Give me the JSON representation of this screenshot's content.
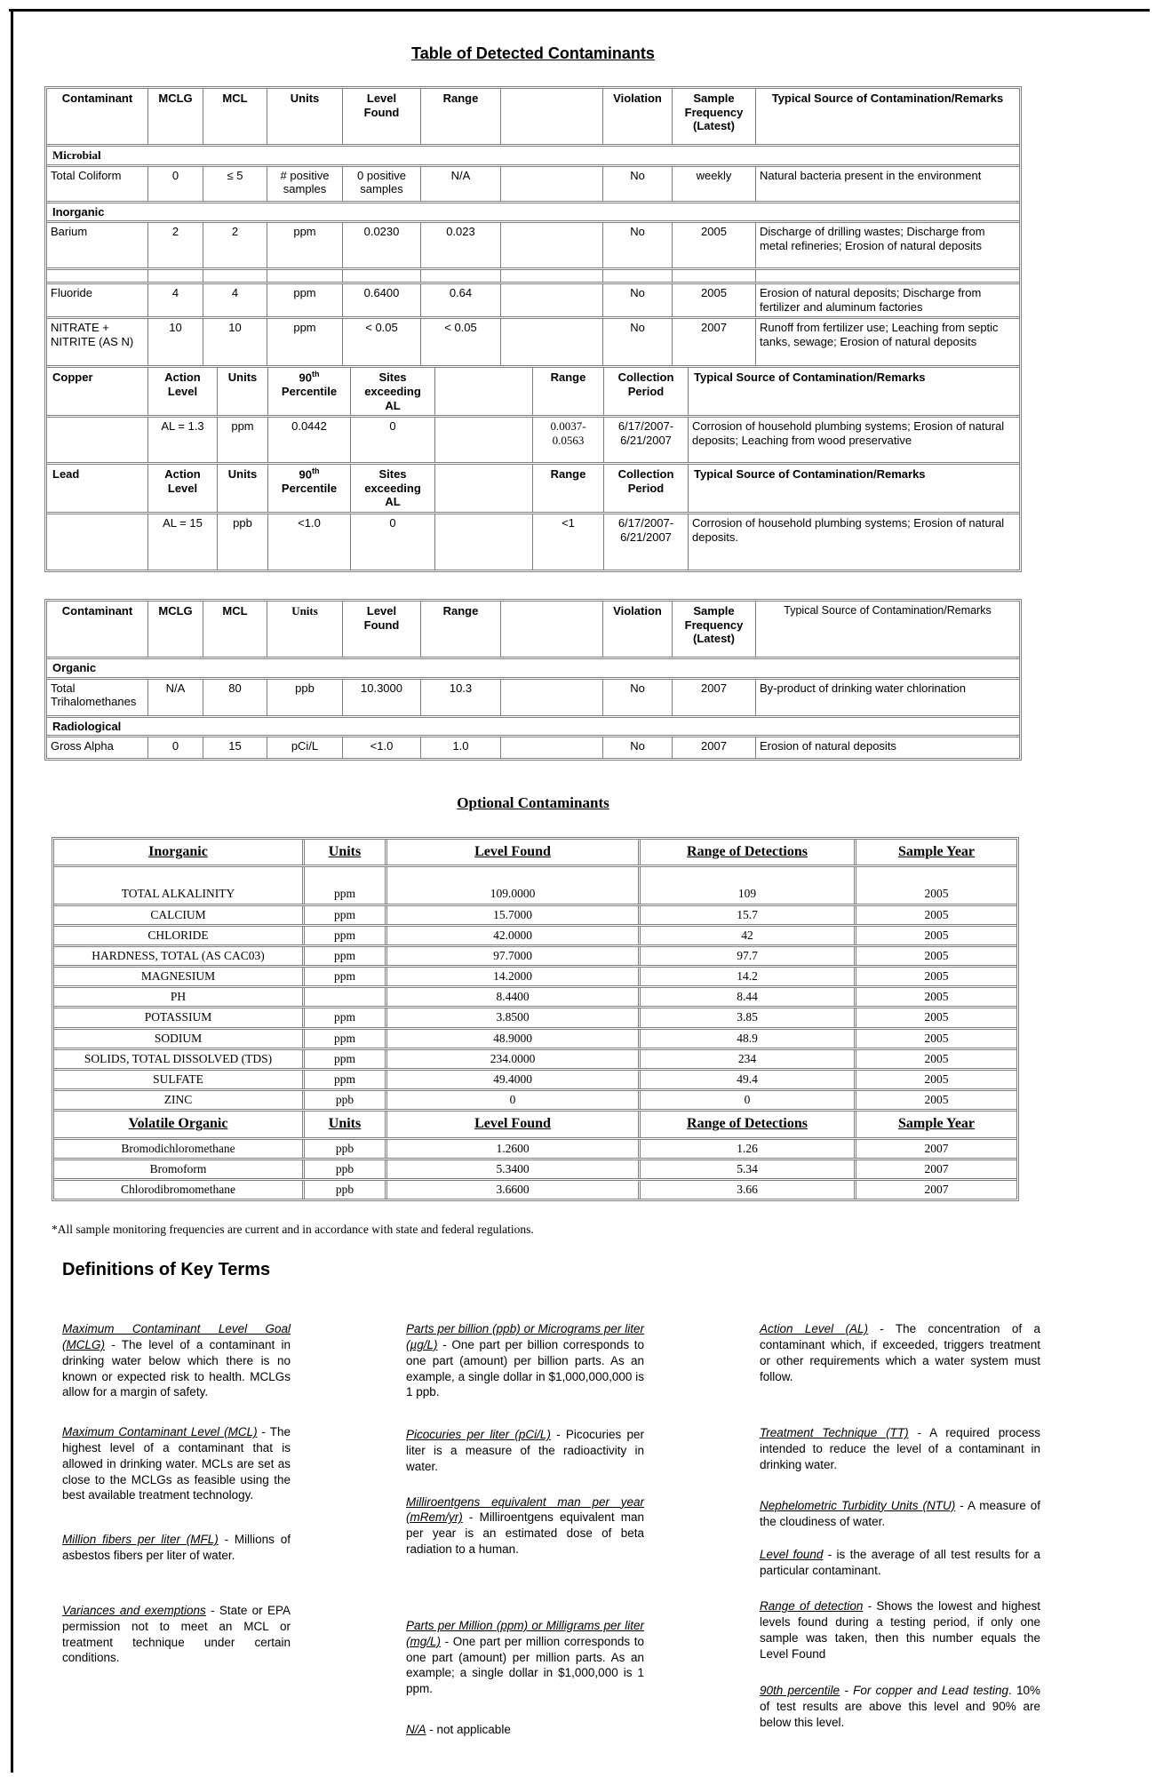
{
  "title": "Table of Detected Contaminants",
  "t1": {
    "h": [
      "Contaminant",
      "MCLG",
      "MCL",
      "Units",
      "Level Found",
      "Range",
      "Violation",
      "Sample Frequency (Latest)",
      "Typical Source of Contamination/Remarks"
    ],
    "sec_microbial": "Microbial",
    "coliform": [
      "Total Coliform",
      "0",
      "≤ 5",
      "# positive samples",
      "0 positive samples",
      "N/A",
      "No",
      "weekly",
      "Natural bacteria present in the environment"
    ],
    "sec_inorganic": "Inorganic",
    "barium": [
      "Barium",
      "2",
      "2",
      "ppm",
      "0.0230",
      "0.023",
      "No",
      "2005",
      "Discharge of drilling wastes; Discharge from metal refineries; Erosion of natural deposits"
    ],
    "fluoride": [
      "Fluoride",
      "4",
      "4",
      "ppm",
      "0.6400",
      "0.64",
      "No",
      "2005",
      "Erosion of natural deposits; Discharge from fertilizer and aluminum factories"
    ],
    "nitrate": [
      "NITRATE + NITRITE (AS N)",
      "10",
      "10",
      "ppm",
      "< 0.05",
      "< 0.05",
      "No",
      "2007",
      "Runoff from fertilizer use; Leaching from septic tanks, sewage;  Erosion of natural deposits"
    ]
  },
  "al": {
    "h": {
      "action": "Action Level",
      "units": "Units",
      "p90_base": "90",
      "p90_sup": "th",
      "p90_word": "Percentile",
      "sites": "Sites exceeding AL",
      "range": "Range",
      "collection": "Collection Period",
      "source": "Typical Source of Contamination/Remarks"
    },
    "copper": {
      "name": "Copper",
      "action": "AL = 1.3",
      "units": "ppm",
      "p90": "0.0442",
      "sites": "0",
      "range": "0.0037-0.0563",
      "collection": "6/17/2007-6/21/2007",
      "source": "Corrosion of household plumbing systems; Erosion of natural deposits; Leaching from wood preservative"
    },
    "lead": {
      "name": "Lead",
      "action": "AL = 15",
      "units": "ppb",
      "p90": "<1.0",
      "sites": "0",
      "range": "<1",
      "collection": "6/17/2007-6/21/2007",
      "source": "Corrosion of household plumbing systems; Erosion of natural deposits."
    }
  },
  "t2": {
    "h": [
      "Contaminant",
      "MCLG",
      "MCL",
      "Units",
      "Level Found",
      "Range",
      "Violation",
      "Sample Frequency (Latest)",
      "Typical Source of Contamination/Remarks"
    ],
    "sec_organic": "Organic",
    "tth": [
      "Total Trihalomethanes",
      "N/A",
      "80",
      "ppb",
      "10.3000",
      "10.3",
      "No",
      "2007",
      "By-product of drinking water chlorination"
    ],
    "sec_radiological": "Radiological",
    "gross_alpha": [
      "Gross Alpha",
      "0",
      "15",
      "pCi/L",
      "<1.0",
      "1.0",
      "No",
      "2007",
      "Erosion of natural deposits"
    ]
  },
  "opt": {
    "title": "Optional Contaminants",
    "h_inorganic": [
      "Inorganic",
      "Units",
      "Level Found",
      "Range of Detections",
      "Sample Year"
    ],
    "rows": [
      [
        "TOTAL ALKALINITY",
        "ppm",
        "109.0000",
        "109",
        "2005"
      ],
      [
        "CALCIUM",
        "ppm",
        "15.7000",
        "15.7",
        "2005"
      ],
      [
        "CHLORIDE",
        "ppm",
        "42.0000",
        "42",
        "2005"
      ],
      [
        "HARDNESS, TOTAL (AS CAC03)",
        "ppm",
        "97.7000",
        "97.7",
        "2005"
      ],
      [
        "MAGNESIUM",
        "ppm",
        "14.2000",
        "14.2",
        "2005"
      ],
      [
        "PH",
        "",
        "8.4400",
        "8.44",
        "2005"
      ],
      [
        "POTASSIUM",
        "ppm",
        "3.8500",
        "3.85",
        "2005"
      ],
      [
        "SODIUM",
        "ppm",
        "48.9000",
        "48.9",
        "2005"
      ],
      [
        "SOLIDS, TOTAL DISSOLVED (TDS)",
        "ppm",
        "234.0000",
        "234",
        "2005"
      ],
      [
        "SULFATE",
        "ppm",
        "49.4000",
        "49.4",
        "2005"
      ],
      [
        "ZINC",
        "ppb",
        "0",
        "0",
        "2005"
      ]
    ],
    "h_volatile": [
      "Volatile Organic",
      "Units",
      "Level Found",
      "Range of  Detections",
      "Sample Year"
    ],
    "vrows": [
      [
        "Bromodichloromethane",
        "ppb",
        "1.2600",
        "1.26",
        "2007"
      ],
      [
        "Bromoform",
        "ppb",
        "5.3400",
        "5.34",
        "2007"
      ],
      [
        "Chlorodibromomethane",
        "ppb",
        "3.6600",
        "3.66",
        "2007"
      ]
    ]
  },
  "footnote": "*All sample monitoring frequencies are current and in accordance with state and federal regulations.",
  "defs": {
    "heading": "Definitions of Key Terms",
    "col1": [
      {
        "term": "Maximum Contaminant Level Goal (MCLG)",
        "text": " - The level of a contaminant in drinking water below which there is no known or expected risk to health.  MCLGs allow for a margin of safety."
      },
      {
        "term": "Maximum Contaminant Level (MCL)",
        "text": " - The highest level of a contaminant that is allowed in drinking water.  MCLs are set as close to the MCLGs as feasible using the best available treatment technology."
      },
      {
        "term": "Million fibers per liter (MFL)",
        "text": " - Millions of asbestos fibers per liter of water."
      },
      {
        "term": "Variances and exemptions",
        "text": " - State or EPA permission not to meet an MCL or treatment technique under certain conditions."
      }
    ],
    "col2": [
      {
        "term": "Parts per billion (ppb) or Micrograms per liter (µg/L)",
        "text": " - One part per billion corresponds to one part (amount) per billion parts.  As an example, a single dollar in $1,000,000,000 is 1 ppb."
      },
      {
        "term": "Picocuries per liter (pCi/L)",
        "text": " - Picocuries per liter is a measure of the radioactivity in water."
      },
      {
        "term": "Milliroentgens equivalent man per year (mRem/yr)",
        "text": " - Milliroentgens equivalent man per year is an estimated dose of beta radiation to a human."
      },
      {
        "term": "Parts per Million (ppm) or Milligrams per liter (mg/L)",
        "text": " - One part per million corresponds to one part (amount) per million parts.  As an example; a single dollar in $1,000,000 is 1 ppm."
      },
      {
        "term": "N/A",
        "text": " - not applicable"
      }
    ],
    "col3": [
      {
        "term": "Action Level (AL)",
        "text": " - The concentration of a contaminant which, if exceeded, triggers treatment or other requirements which a water system must follow."
      },
      {
        "term": "Treatment Technique (TT)",
        "text": " - A required process intended to reduce the level of a contaminant in drinking water."
      },
      {
        "term": "Nephelometric Turbidity Units (NTU)",
        "text": " - A measure of the cloudiness of water."
      },
      {
        "term": "Level found",
        "text": " - is the average of all test results for a particular contaminant."
      },
      {
        "term": "Range of detection",
        "text": " - Shows the lowest and highest levels found during a testing period, if only one sample was taken, then this number equals the Level Found"
      },
      {
        "term": "90th percentile",
        "italic": " - For copper and Lead testing",
        "text": ".  10% of test results are above this level and 90% are below this level."
      }
    ]
  }
}
